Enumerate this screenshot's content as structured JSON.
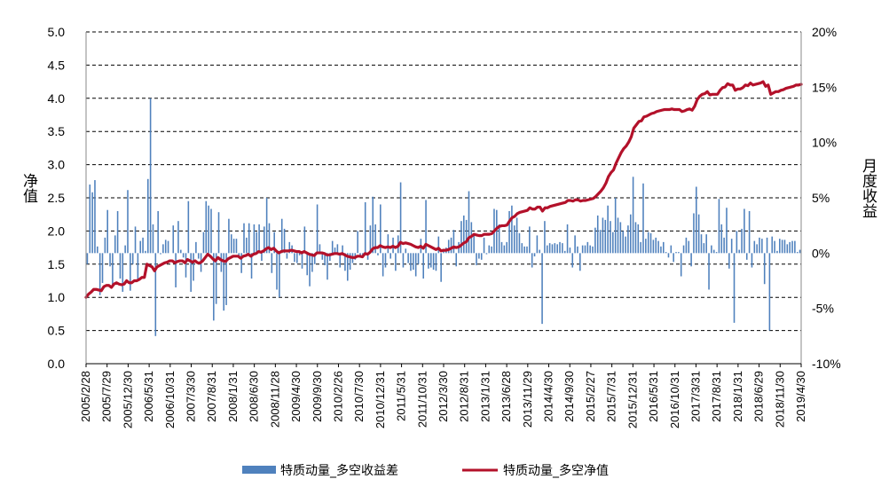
{
  "chart_data": {
    "type": "bar+line",
    "title": "",
    "left_axis": {
      "label": "净值",
      "ylim": [
        0,
        5
      ],
      "ticks": [
        "0.0",
        "0.5",
        "1.0",
        "1.5",
        "2.0",
        "2.5",
        "3.0",
        "3.5",
        "4.0",
        "4.5",
        "5.0"
      ]
    },
    "right_axis": {
      "label": "月度收益",
      "ylim": [
        -10,
        20
      ],
      "ticks": [
        "-10%",
        "-5%",
        "0%",
        "5%",
        "10%",
        "15%",
        "20%"
      ]
    },
    "x_tick_labels": [
      "2005/2/28",
      "2005/7/29",
      "2005/12/30",
      "2006/5/31",
      "2006/10/31",
      "2007/3/30",
      "2007/8/31",
      "2008/1/31",
      "2008/6/30",
      "2008/11/28",
      "2009/4/30",
      "2009/9/30",
      "2010/2/26",
      "2010/7/30",
      "2010/12/31",
      "2011/5/31",
      "2011/10/31",
      "2012/3/30",
      "2012/8/31",
      "2013/1/31",
      "2013/6/28",
      "2013/11/29",
      "2014/4/30",
      "2014/9/30",
      "2015/2/27",
      "2015/7/31",
      "2015/12/31",
      "2016/5/31",
      "2016/10/31",
      "2017/3/31",
      "2017/8/31",
      "2018/1/31",
      "2018/6/29",
      "2018/11/30",
      "2019/4/30"
    ],
    "grid": true,
    "legend_position": "bottom",
    "series": [
      {
        "name": "特质动量_多空收益差",
        "type": "bar",
        "axis": "right",
        "color": "#4f81bd",
        "unit": "%",
        "values": [
          -1.0,
          6.2,
          5.5,
          6.6,
          0.6,
          -3.8,
          -2.7,
          1.4,
          3.9,
          -1.2,
          -2.9,
          1.6,
          3.8,
          -2.3,
          -3.5,
          0.7,
          5.7,
          -3.4,
          -1.0,
          2.4,
          -2.5,
          1.1,
          1.4,
          0.2,
          6.7,
          14.0,
          2.6,
          -7.5,
          3.8,
          -0.1,
          0.8,
          1.2,
          1.1,
          0.0,
          2.5,
          -3.1,
          2.9,
          0.3,
          -0.4,
          -2.2,
          4.7,
          -3.5,
          -2.5,
          1.0,
          -0.5,
          -1.7,
          1.9,
          4.7,
          4.3,
          4.0,
          -6.1,
          -4.6,
          3.7,
          -1.7,
          -5.2,
          -4.7,
          3.1,
          1.7,
          1.3,
          1.3,
          -0.4,
          -1.8,
          2.7,
          1.4,
          2.7,
          -2.3,
          2.6,
          1.9,
          2.6,
          -0.7,
          2.4,
          5.0,
          2.7,
          -1.8,
          1.9,
          -3.3,
          -4.0,
          3.1,
          2.2,
          -0.5,
          1.0,
          0.7,
          -0.8,
          -0.9,
          -0.2,
          -1.4,
          2.4,
          -2.0,
          -3.0,
          -1.7,
          -1.0,
          4.4,
          0.8,
          -0.6,
          -1.1,
          -2.4,
          -0.7,
          1.1,
          0.5,
          0.8,
          -1.3,
          0.7,
          -1.6,
          -2.5,
          -1.5,
          -0.9,
          -0.6,
          2.0,
          -0.4,
          -0.4,
          4.6,
          -0.6,
          2.5,
          5.1,
          2.6,
          -0.2,
          4.4,
          -2.1,
          -1.3,
          1.7,
          -0.5,
          1.4,
          -1.6,
          1.6,
          6.4,
          -1.3,
          0.4,
          -0.9,
          -1.6,
          -1.5,
          -2.1,
          -1.0,
          1.3,
          -2.3,
          4.8,
          -1.4,
          -1.3,
          -1.5,
          -1.6,
          1.5,
          -2.6,
          0.3,
          0.5,
          1.2,
          1.4,
          2.1,
          -1.2,
          1.0,
          2.9,
          3.4,
          3.0,
          5.6,
          2.8,
          1.7,
          -1.1,
          -0.5,
          -0.6,
          1.4,
          -0.1,
          0.7,
          0.6,
          4.0,
          3.9,
          2.6,
          1.0,
          0.7,
          1.0,
          3.8,
          4.3,
          2.5,
          3.2,
          1.8,
          0.9,
          0.6,
          0.6,
          2.4,
          -1.3,
          -0.3,
          1.6,
          0.3,
          -6.4,
          2.9,
          0.7,
          0.9,
          0.8,
          0.9,
          0.8,
          1.0,
          0.9,
          0.2,
          2.6,
          0.5,
          -1.3,
          1.6,
          0.6,
          -1.6,
          0.7,
          0.7,
          1.0,
          0.7,
          0.6,
          2.3,
          3.4,
          2.1,
          3.2,
          3.0,
          4.3,
          2.9,
          1.9,
          5.0,
          3.2,
          2.8,
          2.0,
          1.5,
          2.5,
          3.5,
          6.9,
          2.8,
          2.6,
          1.0,
          6.3,
          1.3,
          1.9,
          1.8,
          1.2,
          1.4,
          1.1,
          0.6,
          1.0,
          0.1,
          -0.4,
          0.7,
          -0.8,
          0.1,
          0.1,
          -2.1,
          0.7,
          1.4,
          1.1,
          -1.2,
          3.6,
          6.0,
          3.5,
          1.7,
          0.9,
          1.7,
          -3.3,
          0.7,
          0.3,
          0.1,
          4.9,
          2.6,
          1.4,
          4.1,
          -1.4,
          1.3,
          -6.3,
          2.0,
          0.3,
          2.2,
          4.0,
          -0.6,
          3.8,
          -1.3,
          1.1,
          0.8,
          1.4,
          1.3,
          -2.8,
          1.4,
          -7.0,
          1.5,
          1.1,
          0.2,
          1.3,
          1.2,
          1.2,
          0.8,
          1.0,
          1.1,
          1.1,
          0.1,
          0.3
        ]
      },
      {
        "name": "特质动量_多空净值",
        "type": "line",
        "axis": "left",
        "color": "#b3112a",
        "values": [
          1.0,
          1.05,
          1.08,
          1.12,
          1.12,
          1.11,
          1.1,
          1.16,
          1.18,
          1.18,
          1.15,
          1.2,
          1.22,
          1.2,
          1.19,
          1.2,
          1.25,
          1.22,
          1.22,
          1.25,
          1.25,
          1.27,
          1.3,
          1.3,
          1.5,
          1.48,
          1.46,
          1.4,
          1.46,
          1.48,
          1.5,
          1.52,
          1.53,
          1.55,
          1.55,
          1.52,
          1.54,
          1.55,
          1.55,
          1.52,
          1.57,
          1.55,
          1.53,
          1.55,
          1.52,
          1.52,
          1.55,
          1.6,
          1.65,
          1.62,
          1.58,
          1.55,
          1.6,
          1.57,
          1.55,
          1.54,
          1.58,
          1.6,
          1.62,
          1.62,
          1.62,
          1.59,
          1.62,
          1.63,
          1.65,
          1.62,
          1.65,
          1.66,
          1.69,
          1.68,
          1.7,
          1.73,
          1.75,
          1.72,
          1.74,
          1.7,
          1.67,
          1.69,
          1.7,
          1.7,
          1.7,
          1.71,
          1.7,
          1.69,
          1.69,
          1.67,
          1.69,
          1.67,
          1.65,
          1.64,
          1.63,
          1.67,
          1.67,
          1.67,
          1.66,
          1.64,
          1.64,
          1.65,
          1.66,
          1.66,
          1.65,
          1.66,
          1.64,
          1.62,
          1.61,
          1.6,
          1.6,
          1.62,
          1.62,
          1.61,
          1.66,
          1.65,
          1.68,
          1.73,
          1.75,
          1.75,
          1.78,
          1.76,
          1.75,
          1.76,
          1.75,
          1.77,
          1.75,
          1.77,
          1.83,
          1.81,
          1.82,
          1.81,
          1.8,
          1.78,
          1.76,
          1.75,
          1.77,
          1.74,
          1.8,
          1.78,
          1.76,
          1.74,
          1.72,
          1.74,
          1.7,
          1.71,
          1.71,
          1.72,
          1.74,
          1.76,
          1.75,
          1.76,
          1.79,
          1.82,
          1.84,
          1.9,
          1.92,
          1.95,
          1.94,
          1.93,
          1.93,
          1.95,
          1.95,
          1.95,
          1.96,
          2.0,
          2.04,
          2.07,
          2.08,
          2.08,
          2.09,
          2.15,
          2.2,
          2.22,
          2.26,
          2.28,
          2.29,
          2.3,
          2.31,
          2.35,
          2.33,
          2.33,
          2.36,
          2.36,
          2.3,
          2.35,
          2.35,
          2.37,
          2.38,
          2.39,
          2.4,
          2.41,
          2.42,
          2.43,
          2.46,
          2.46,
          2.45,
          2.47,
          2.47,
          2.45,
          2.46,
          2.46,
          2.47,
          2.48,
          2.49,
          2.52,
          2.56,
          2.6,
          2.65,
          2.72,
          2.82,
          2.88,
          2.92,
          3.02,
          3.1,
          3.18,
          3.24,
          3.28,
          3.34,
          3.42,
          3.55,
          3.6,
          3.65,
          3.66,
          3.72,
          3.73,
          3.75,
          3.77,
          3.78,
          3.8,
          3.81,
          3.82,
          3.83,
          3.83,
          3.83,
          3.84,
          3.83,
          3.83,
          3.83,
          3.8,
          3.81,
          3.83,
          3.84,
          3.82,
          3.88,
          3.98,
          4.03,
          4.06,
          4.07,
          4.1,
          4.05,
          4.06,
          4.06,
          4.06,
          4.12,
          4.16,
          4.17,
          4.22,
          4.2,
          4.2,
          4.12,
          4.14,
          4.14,
          4.16,
          4.2,
          4.19,
          4.23,
          4.2,
          4.21,
          4.22,
          4.23,
          4.25,
          4.18,
          4.2,
          4.06,
          4.08,
          4.1,
          4.1,
          4.12,
          4.13,
          4.15,
          4.16,
          4.17,
          4.18,
          4.2,
          4.2,
          4.21
        ]
      }
    ]
  }
}
